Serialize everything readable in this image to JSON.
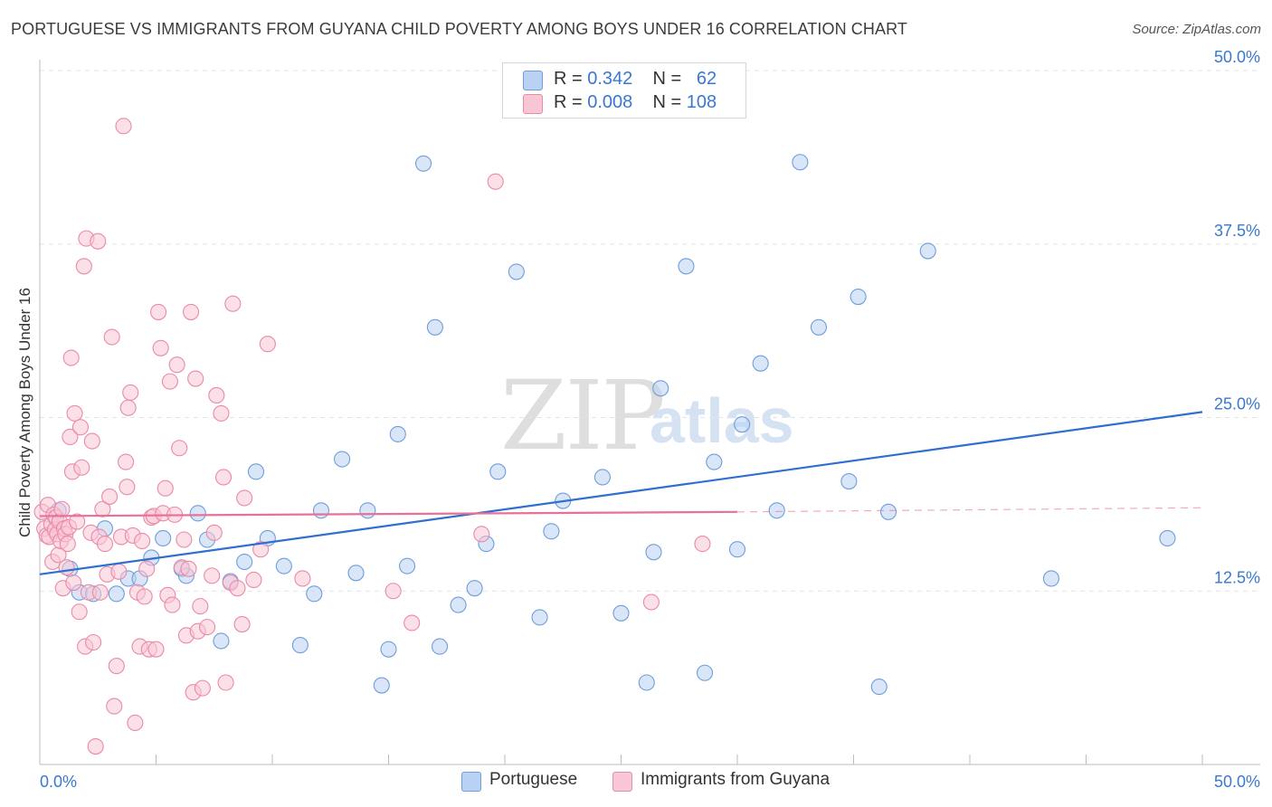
{
  "title": "PORTUGUESE VS IMMIGRANTS FROM GUYANA CHILD POVERTY AMONG BOYS UNDER 16 CORRELATION CHART",
  "source": "Source: ZipAtlas.com",
  "watermark": {
    "zip": "ZIP",
    "atlas": "atlas"
  },
  "legend": {
    "rows": [
      {
        "r_label": "R =",
        "r_value": "0.342",
        "n_label": "N =",
        "n_value": "62",
        "color": "#b9d1f2",
        "edge": "#6f9ed8"
      },
      {
        "r_label": "R =",
        "r_value": "0.008",
        "n_label": "N =",
        "n_value": "108",
        "color": "#f9c6d6",
        "edge": "#e88aa8"
      }
    ]
  },
  "bottom_legend": [
    {
      "label": "Portuguese",
      "color": "#b9d1f2",
      "edge": "#6f9ed8"
    },
    {
      "label": "Immigrants from Guyana",
      "color": "#f9c6d6",
      "edge": "#e88aa8"
    }
  ],
  "chart_data": {
    "type": "scatter",
    "title": "PORTUGUESE VS IMMIGRANTS FROM GUYANA CHILD POVERTY AMONG BOYS UNDER 16 CORRELATION CHART",
    "xlabel": "",
    "ylabel": "Child Poverty Among Boys Under 16",
    "xlim": [
      0,
      50
    ],
    "ylim": [
      0,
      50
    ],
    "x_tick_labels": [
      "0.0%",
      "50.0%"
    ],
    "y_ticks": [
      12.5,
      25.0,
      37.5,
      50.0
    ],
    "y_tick_labels": [
      "12.5%",
      "25.0%",
      "37.5%",
      "50.0%"
    ],
    "grid": true,
    "series": [
      {
        "name": "Portuguese",
        "color": "#6f9ed8",
        "fill": "#b9d1f2",
        "trend": {
          "x0": 0,
          "y0": 13.7,
          "x1": 50,
          "y1": 25.4,
          "color": "#2f6fcf"
        },
        "points": [
          [
            0.8,
            18.3
          ],
          [
            1.3,
            14.1
          ],
          [
            1.7,
            12.4
          ],
          [
            2.3,
            12.3
          ],
          [
            2.8,
            17.0
          ],
          [
            3.3,
            12.3
          ],
          [
            3.8,
            13.4
          ],
          [
            4.3,
            13.4
          ],
          [
            4.8,
            14.9
          ],
          [
            5.3,
            16.3
          ],
          [
            6.1,
            14.1
          ],
          [
            6.3,
            13.6
          ],
          [
            6.8,
            18.1
          ],
          [
            7.2,
            16.2
          ],
          [
            7.8,
            8.9
          ],
          [
            8.2,
            13.2
          ],
          [
            8.8,
            14.6
          ],
          [
            9.3,
            21.1
          ],
          [
            9.8,
            16.3
          ],
          [
            10.5,
            14.3
          ],
          [
            11.2,
            8.6
          ],
          [
            11.8,
            12.3
          ],
          [
            12.1,
            18.3
          ],
          [
            13.0,
            22.0
          ],
          [
            13.6,
            13.8
          ],
          [
            14.1,
            18.3
          ],
          [
            14.7,
            5.7
          ],
          [
            15.0,
            8.3
          ],
          [
            15.4,
            23.8
          ],
          [
            15.8,
            14.3
          ],
          [
            16.5,
            43.3
          ],
          [
            17.0,
            31.5
          ],
          [
            17.2,
            8.5
          ],
          [
            18.0,
            11.5
          ],
          [
            18.7,
            12.7
          ],
          [
            19.2,
            15.9
          ],
          [
            19.7,
            21.1
          ],
          [
            20.5,
            35.5
          ],
          [
            21.5,
            10.6
          ],
          [
            22.0,
            16.8
          ],
          [
            22.5,
            19.0
          ],
          [
            24.2,
            20.7
          ],
          [
            25.0,
            10.9
          ],
          [
            26.1,
            5.9
          ],
          [
            26.4,
            15.3
          ],
          [
            26.7,
            27.1
          ],
          [
            27.8,
            35.9
          ],
          [
            28.6,
            6.6
          ],
          [
            29.0,
            21.8
          ],
          [
            30.0,
            15.5
          ],
          [
            30.2,
            24.5
          ],
          [
            31.0,
            28.9
          ],
          [
            31.7,
            18.3
          ],
          [
            32.7,
            43.4
          ],
          [
            33.5,
            31.5
          ],
          [
            34.8,
            20.4
          ],
          [
            35.2,
            33.7
          ],
          [
            36.1,
            5.6
          ],
          [
            36.5,
            18.2
          ],
          [
            38.2,
            37.0
          ],
          [
            43.5,
            13.4
          ],
          [
            48.5,
            16.3
          ]
        ]
      },
      {
        "name": "Immigrants from Guyana",
        "color": "#e88aa8",
        "fill": "#f9c6d6",
        "trend": {
          "x0": 0,
          "y0": 17.9,
          "x1": 30,
          "y1": 18.2,
          "dash_x1": 50,
          "dash_y1": 18.5,
          "color": "#e8709a"
        },
        "points": [
          [
            0.1,
            18.2
          ],
          [
            0.2,
            17.0
          ],
          [
            0.3,
            16.5
          ],
          [
            0.35,
            18.7
          ],
          [
            0.4,
            16.4
          ],
          [
            0.5,
            17.3
          ],
          [
            0.55,
            14.6
          ],
          [
            0.6,
            18.0
          ],
          [
            0.65,
            16.9
          ],
          [
            0.7,
            17.8
          ],
          [
            0.75,
            16.6
          ],
          [
            0.8,
            15.1
          ],
          [
            0.85,
            17.5
          ],
          [
            0.9,
            16.1
          ],
          [
            0.95,
            18.4
          ],
          [
            1.0,
            12.7
          ],
          [
            1.05,
            17.0
          ],
          [
            1.1,
            16.6
          ],
          [
            1.15,
            14.2
          ],
          [
            1.2,
            15.9
          ],
          [
            1.25,
            17.1
          ],
          [
            1.3,
            23.6
          ],
          [
            1.35,
            29.3
          ],
          [
            1.4,
            21.1
          ],
          [
            1.45,
            13.1
          ],
          [
            1.5,
            25.3
          ],
          [
            1.6,
            17.5
          ],
          [
            1.7,
            11.0
          ],
          [
            1.75,
            24.3
          ],
          [
            1.8,
            21.4
          ],
          [
            1.9,
            35.9
          ],
          [
            1.95,
            8.5
          ],
          [
            2.0,
            37.9
          ],
          [
            2.1,
            12.4
          ],
          [
            2.2,
            16.7
          ],
          [
            2.25,
            23.3
          ],
          [
            2.3,
            8.8
          ],
          [
            2.4,
            1.3
          ],
          [
            2.5,
            37.7
          ],
          [
            2.55,
            16.4
          ],
          [
            2.6,
            12.4
          ],
          [
            2.7,
            18.4
          ],
          [
            2.8,
            15.9
          ],
          [
            2.9,
            13.7
          ],
          [
            3.0,
            19.3
          ],
          [
            3.1,
            30.8
          ],
          [
            3.2,
            4.2
          ],
          [
            3.3,
            7.1
          ],
          [
            3.4,
            13.9
          ],
          [
            3.5,
            16.4
          ],
          [
            3.6,
            46.0
          ],
          [
            3.7,
            21.8
          ],
          [
            3.75,
            20.0
          ],
          [
            3.8,
            25.7
          ],
          [
            3.9,
            26.8
          ],
          [
            4.0,
            16.5
          ],
          [
            4.1,
            3.0
          ],
          [
            4.2,
            12.4
          ],
          [
            4.3,
            8.5
          ],
          [
            4.4,
            16.1
          ],
          [
            4.5,
            12.1
          ],
          [
            4.6,
            14.1
          ],
          [
            4.7,
            8.3
          ],
          [
            4.8,
            17.8
          ],
          [
            4.9,
            17.9
          ],
          [
            5.0,
            8.3
          ],
          [
            5.1,
            32.6
          ],
          [
            5.2,
            30.0
          ],
          [
            5.3,
            18.1
          ],
          [
            5.4,
            19.9
          ],
          [
            5.5,
            12.2
          ],
          [
            5.6,
            27.6
          ],
          [
            5.7,
            11.5
          ],
          [
            5.8,
            18.0
          ],
          [
            5.9,
            28.8
          ],
          [
            6.0,
            22.8
          ],
          [
            6.1,
            14.2
          ],
          [
            6.2,
            16.2
          ],
          [
            6.3,
            9.3
          ],
          [
            6.4,
            14.1
          ],
          [
            6.5,
            32.6
          ],
          [
            6.6,
            5.2
          ],
          [
            6.7,
            27.8
          ],
          [
            6.8,
            9.6
          ],
          [
            6.9,
            11.4
          ],
          [
            7.0,
            5.5
          ],
          [
            7.2,
            9.9
          ],
          [
            7.4,
            13.6
          ],
          [
            7.5,
            16.7
          ],
          [
            7.6,
            26.6
          ],
          [
            7.8,
            25.3
          ],
          [
            7.9,
            20.7
          ],
          [
            8.0,
            5.9
          ],
          [
            8.2,
            13.1
          ],
          [
            8.3,
            33.2
          ],
          [
            8.5,
            12.7
          ],
          [
            8.7,
            10.1
          ],
          [
            8.8,
            19.2
          ],
          [
            9.2,
            13.3
          ],
          [
            9.5,
            15.5
          ],
          [
            9.8,
            30.3
          ],
          [
            11.3,
            13.4
          ],
          [
            15.2,
            12.5
          ],
          [
            16.0,
            10.2
          ],
          [
            19.0,
            16.6
          ],
          [
            19.6,
            42.0
          ],
          [
            26.3,
            11.7
          ],
          [
            28.5,
            15.9
          ]
        ]
      }
    ]
  }
}
